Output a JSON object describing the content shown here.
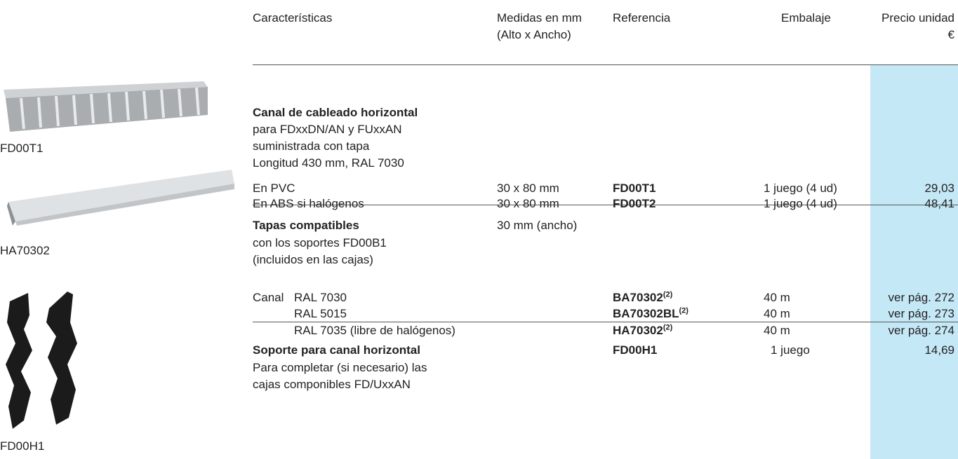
{
  "header": {
    "features": "Características",
    "dimensions": [
      "Medidas en mm",
      "(Alto x Ancho)"
    ],
    "reference": "Referencia",
    "packaging": "Embalaje",
    "price": [
      "Precio unidad",
      "€"
    ]
  },
  "images": [
    {
      "label": "FD00T1"
    },
    {
      "label": "HA70302"
    },
    {
      "label": "FD00H1"
    }
  ],
  "sections": [
    {
      "title": "Canal de cableado horizontal",
      "lines": [
        "para FDxxDN/AN y FUxxAN",
        "suministrada con tapa",
        "Longitud 430 mm, RAL 7030"
      ],
      "rows": [
        {
          "desc": "En PVC",
          "size": "30 x 80 mm",
          "ref": "FD00T1",
          "pack": "1 juego (4 ud)",
          "price": "29,03"
        },
        {
          "desc": "En ABS si halógenos",
          "size": "30 x 80 mm",
          "ref": "FD00T2",
          "pack": "1 juego (4 ud)",
          "price": "48,41"
        }
      ]
    },
    {
      "title": "Tapas compatibles",
      "size": "30 mm (ancho)",
      "lines": [
        "con los soportes FD00B1",
        "(incluidos en las cajas)"
      ],
      "group": "Canal",
      "rows": [
        {
          "desc": "RAL 7030",
          "ref": "BA70302",
          "note": "(2)",
          "pack": "40 m",
          "price": "ver pág. 272"
        },
        {
          "desc": "RAL 5015",
          "ref": "BA70302BL",
          "note": "(2)",
          "pack": "40 m",
          "price": "ver pág. 273"
        },
        {
          "desc": "RAL 7035 (libre de halógenos)",
          "ref": "HA70302",
          "note": "(2)",
          "pack": "40 m",
          "price": "ver pág. 274"
        }
      ]
    },
    {
      "title": "Soporte para canal horizontal",
      "ref": "FD00H1",
      "pack": "1 juego",
      "price": "14,69",
      "lines": [
        "Para completar (si necesario) las",
        "cajas componibles FD/UxxAN"
      ]
    }
  ]
}
